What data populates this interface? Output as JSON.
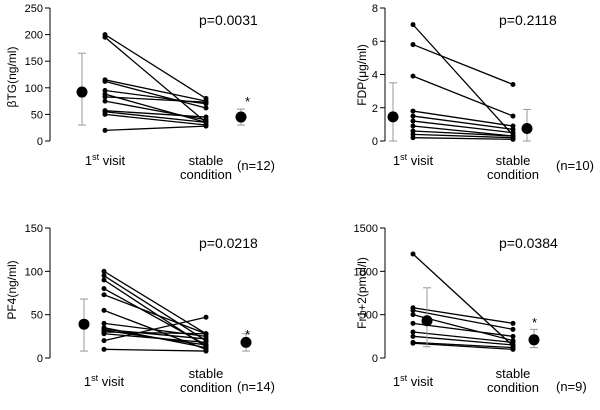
{
  "charts": [
    {
      "id": "btg",
      "type": "paired_line",
      "ylabel": "βTG(ng/ml)",
      "ylim": [
        0,
        250
      ],
      "yticks": [
        0,
        50,
        100,
        150,
        200,
        250
      ],
      "yticklabels": [
        "0",
        "50",
        "100",
        "150",
        "200",
        "250"
      ],
      "categories": [
        "1st visit",
        "stable condition"
      ],
      "p_label": "p=0.0031",
      "n_label": "(n=12)",
      "star": "*",
      "pairs": [
        [
          200,
          80
        ],
        [
          195,
          35
        ],
        [
          115,
          75
        ],
        [
          112,
          62
        ],
        [
          95,
          70
        ],
        [
          88,
          35
        ],
        [
          83,
          73
        ],
        [
          75,
          40
        ],
        [
          57,
          45
        ],
        [
          55,
          35
        ],
        [
          50,
          30
        ],
        [
          20,
          28
        ]
      ],
      "summary": [
        {
          "mean": 92,
          "low": 30,
          "high": 165
        },
        {
          "mean": 45,
          "low": 30,
          "high": 60
        }
      ]
    },
    {
      "id": "fdp",
      "type": "paired_line",
      "ylabel": "FDP(μg/ml)",
      "ylim": [
        0,
        8
      ],
      "yticks": [
        0,
        2,
        4,
        6,
        8
      ],
      "yticklabels": [
        "0",
        "2",
        "4",
        "6",
        "8"
      ],
      "categories": [
        "1st visit",
        "stable condition"
      ],
      "p_label": "p=0.2118",
      "n_label": "(n=10)",
      "star": "",
      "pairs": [
        [
          7.0,
          0.35
        ],
        [
          5.8,
          3.4
        ],
        [
          3.9,
          1.5
        ],
        [
          1.8,
          0.9
        ],
        [
          1.5,
          0.7
        ],
        [
          1.2,
          0.5
        ],
        [
          0.9,
          0.3
        ],
        [
          0.6,
          0.3
        ],
        [
          0.4,
          0.2
        ],
        [
          0.2,
          0.1
        ]
      ],
      "summary": [
        {
          "mean": 1.45,
          "low": 0,
          "high": 3.5
        },
        {
          "mean": 0.75,
          "low": 0,
          "high": 1.9
        }
      ]
    },
    {
      "id": "pf4",
      "type": "paired_line",
      "ylabel": "PF4(ng/ml)",
      "ylim": [
        0,
        150
      ],
      "yticks": [
        0,
        50,
        100,
        150
      ],
      "yticklabels": [
        "0",
        "50",
        "100",
        "150"
      ],
      "categories": [
        "1st visit",
        "stable condition"
      ],
      "p_label": "p=0.0218",
      "n_label": "(n=14)",
      "star": "*",
      "pairs": [
        [
          100,
          28
        ],
        [
          95,
          20
        ],
        [
          90,
          13
        ],
        [
          80,
          15
        ],
        [
          73,
          28
        ],
        [
          55,
          10
        ],
        [
          40,
          25
        ],
        [
          35,
          12
        ],
        [
          33,
          22
        ],
        [
          32,
          15
        ],
        [
          30,
          28
        ],
        [
          28,
          18
        ],
        [
          20,
          47
        ],
        [
          10,
          8
        ]
      ],
      "summary": [
        {
          "mean": 39,
          "low": 8,
          "high": 68
        },
        {
          "mean": 18,
          "low": 8,
          "high": 28
        }
      ]
    },
    {
      "id": "fr12",
      "type": "paired_line",
      "ylabel": "Fr1+2(pmol/l)",
      "ylim": [
        0,
        1500
      ],
      "yticks": [
        0,
        500,
        1000,
        1500
      ],
      "yticklabels": [
        "0",
        "500",
        "1000",
        "1500"
      ],
      "categories": [
        "1st visit",
        "stable condition"
      ],
      "p_label": "p=0.0384",
      "n_label": "(n=9)",
      "star": "*",
      "pairs": [
        [
          1200,
          140
        ],
        [
          580,
          400
        ],
        [
          550,
          330
        ],
        [
          500,
          200
        ],
        [
          400,
          250
        ],
        [
          300,
          180
        ],
        [
          250,
          150
        ],
        [
          180,
          120
        ],
        [
          170,
          100
        ]
      ],
      "summary": [
        {
          "mean": 430,
          "low": 130,
          "high": 810
        },
        {
          "mean": 210,
          "low": 120,
          "high": 330
        }
      ]
    }
  ]
}
